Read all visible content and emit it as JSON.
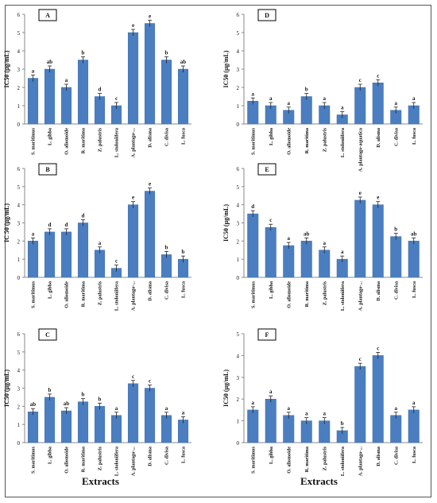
{
  "colors": {
    "bar": "#4a7ec0",
    "bar_edge": "#3f6fae",
    "axis": "#888888",
    "text": "#111111"
  },
  "x_axis_title": "Extracts",
  "categories": [
    "S. maritimus",
    "L. gibba",
    "O. aliomoide",
    "R. maritima",
    "Z. palustris",
    "L. stoloniifera",
    "A. plantago-...",
    "D. alisma",
    "C. divisa",
    "L. fusca"
  ],
  "chart_data": [
    {
      "type": "bar",
      "panel": "A",
      "ylabel": "IC50 (µg/mL)",
      "ylim": [
        0,
        6
      ],
      "yticks": [
        0,
        1,
        2,
        3,
        4,
        5,
        6
      ],
      "values": [
        2.5,
        3.0,
        2.0,
        3.5,
        1.5,
        1.0,
        5.0,
        5.5,
        3.5,
        3.0
      ],
      "significance": [
        "a",
        "ab",
        "a",
        "b",
        "d",
        "c",
        "e",
        "e",
        "b",
        "ab"
      ]
    },
    {
      "type": "bar",
      "panel": "D",
      "ylabel": "IC50 (µg/mL)",
      "ylim": [
        0,
        6
      ],
      "yticks": [
        0,
        1,
        2,
        3,
        4,
        5,
        6
      ],
      "categories_override": [
        "S. maritimus",
        "L. gibba",
        "O. aliomoide",
        "R. maritima",
        "Z. palustris",
        "L. stoloniifera",
        "A. plantago-aquatica",
        "D. alisma",
        "C. divisa",
        "L. fusca"
      ],
      "values": [
        1.25,
        1.0,
        0.75,
        1.5,
        1.0,
        0.5,
        2.0,
        2.25,
        0.75,
        1.0
      ],
      "significance": [
        "a",
        "a",
        "a",
        "b",
        "a",
        "a",
        "c",
        "c",
        "a",
        "a"
      ]
    },
    {
      "type": "bar",
      "panel": "B",
      "ylabel": "IC 50 (µg/mL)",
      "ylim": [
        0,
        6
      ],
      "yticks": [
        0,
        1,
        2,
        3,
        4,
        5,
        6
      ],
      "values": [
        2.0,
        2.5,
        2.5,
        3.0,
        1.5,
        0.5,
        4.0,
        4.75,
        1.25,
        1.0
      ],
      "significance": [
        "a",
        "d",
        "d",
        "d",
        "a",
        "c",
        "e",
        "e",
        "b",
        "b"
      ]
    },
    {
      "type": "bar",
      "panel": "E",
      "ylabel": "IC50 (µg/mL)",
      "ylim": [
        0,
        6
      ],
      "yticks": [
        0,
        1,
        2,
        3,
        4,
        5,
        6
      ],
      "values": [
        3.5,
        2.75,
        1.75,
        2.0,
        1.5,
        1.0,
        4.25,
        4.0,
        2.25,
        2.0
      ],
      "significance": [
        "d",
        "c",
        "a",
        "ab",
        "a",
        "a",
        "e",
        "e",
        "b",
        "ab"
      ]
    },
    {
      "type": "bar",
      "panel": "C",
      "ylabel": "IC50 (µg/mL)",
      "ylim": [
        0,
        6
      ],
      "yticks": [
        0,
        1,
        2,
        3,
        4,
        5,
        6
      ],
      "values": [
        1.7,
        2.5,
        1.75,
        2.25,
        2.0,
        1.5,
        3.25,
        3.0,
        1.5,
        1.25
      ],
      "significance": [
        "ab",
        "b",
        "ab",
        "b",
        "b",
        "a",
        "c",
        "c",
        "a",
        "a"
      ]
    },
    {
      "type": "bar",
      "panel": "F",
      "ylabel": "IC50 (µg/mL)",
      "ylim": [
        0,
        5
      ],
      "yticks": [
        0,
        1,
        2,
        3,
        4,
        5
      ],
      "values": [
        1.5,
        2.0,
        1.25,
        1.0,
        1.0,
        0.55,
        3.5,
        4.0,
        1.25,
        1.5
      ],
      "significance": [
        "a",
        "a",
        "a",
        "a",
        "a",
        "b",
        "c",
        "c",
        "a",
        "a"
      ]
    }
  ]
}
